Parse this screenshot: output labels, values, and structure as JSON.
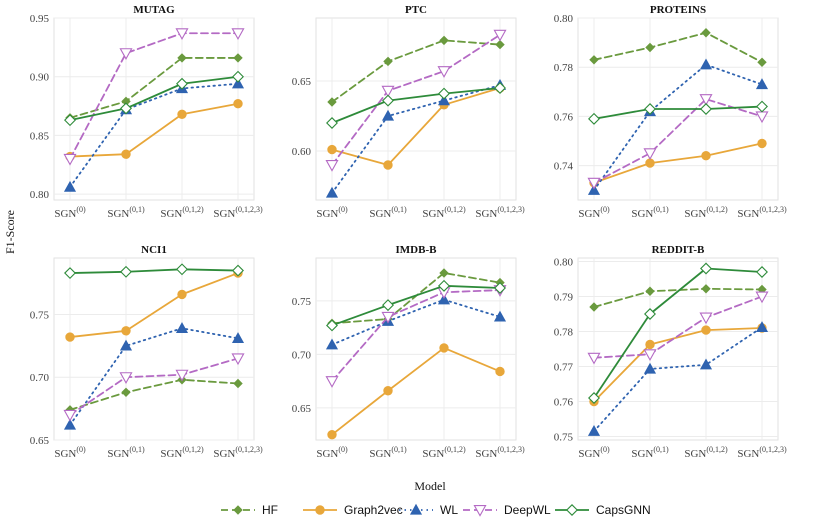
{
  "figure": {
    "ylabel": "F1-Score",
    "xlabel": "Model",
    "x_tick_base": "SGN",
    "x_tick_sups": [
      "(0)",
      "(0,1)",
      "(0,1,2)",
      "(0,1,2,3)"
    ]
  },
  "series_styles": [
    {
      "name": "HF",
      "color": "#6a9a3e",
      "dash": "7,4",
      "marker": "diamond-filled"
    },
    {
      "name": "Graph2vec",
      "color": "#e8a73a",
      "dash": "",
      "marker": "circle-filled"
    },
    {
      "name": "WL",
      "color": "#2f63b0",
      "dash": "1.5,4",
      "marker": "triangle-up-filled"
    },
    {
      "name": "DeepWL",
      "color": "#b46ac4",
      "dash": "7,4",
      "marker": "triangle-down-open"
    },
    {
      "name": "CapsGNN",
      "color": "#2e8b3a",
      "dash": "",
      "marker": "diamond-open"
    }
  ],
  "chart_data": [
    {
      "type": "line",
      "title": "MUTAG",
      "categories": [
        "SGN(0)",
        "SGN(0,1)",
        "SGN(0,1,2)",
        "SGN(0,1,2,3)"
      ],
      "ylim": [
        0.795,
        0.95
      ],
      "yticks": [
        0.8,
        0.85,
        0.9,
        0.95
      ],
      "series": [
        {
          "name": "HF",
          "values": [
            0.865,
            0.879,
            0.916,
            0.916
          ]
        },
        {
          "name": "Graph2vec",
          "values": [
            0.832,
            0.834,
            0.868,
            0.877
          ]
        },
        {
          "name": "WL",
          "values": [
            0.806,
            0.872,
            0.89,
            0.894
          ]
        },
        {
          "name": "DeepWL",
          "values": [
            0.83,
            0.92,
            0.937,
            0.937
          ]
        },
        {
          "name": "CapsGNN",
          "values": [
            0.863,
            0.873,
            0.894,
            0.9
          ]
        }
      ]
    },
    {
      "type": "line",
      "title": "PTC",
      "categories": [
        "SGN(0)",
        "SGN(0,1)",
        "SGN(0,1,2)",
        "SGN(0,1,2,3)"
      ],
      "ylim": [
        0.565,
        0.695
      ],
      "yticks": [
        0.6,
        0.65
      ],
      "series": [
        {
          "name": "HF",
          "values": [
            0.635,
            0.664,
            0.679,
            0.676
          ]
        },
        {
          "name": "Graph2vec",
          "values": [
            0.601,
            0.59,
            0.633,
            0.645
          ]
        },
        {
          "name": "WL",
          "values": [
            0.57,
            0.625,
            0.636,
            0.647
          ]
        },
        {
          "name": "DeepWL",
          "values": [
            0.59,
            0.643,
            0.657,
            0.683
          ]
        },
        {
          "name": "CapsGNN",
          "values": [
            0.62,
            0.636,
            0.641,
            0.645
          ]
        }
      ]
    },
    {
      "type": "line",
      "title": "PROTEINS",
      "categories": [
        "SGN(0)",
        "SGN(0,1)",
        "SGN(0,1,2)",
        "SGN(0,1,2,3)"
      ],
      "ylim": [
        0.726,
        0.8
      ],
      "yticks": [
        0.74,
        0.76,
        0.78,
        0.8
      ],
      "series": [
        {
          "name": "HF",
          "values": [
            0.783,
            0.788,
            0.794,
            0.782
          ]
        },
        {
          "name": "Graph2vec",
          "values": [
            0.733,
            0.741,
            0.744,
            0.749
          ]
        },
        {
          "name": "WL",
          "values": [
            0.73,
            0.762,
            0.781,
            0.773
          ]
        },
        {
          "name": "DeepWL",
          "values": [
            0.733,
            0.745,
            0.767,
            0.76
          ]
        },
        {
          "name": "CapsGNN",
          "values": [
            0.759,
            0.763,
            0.763,
            0.764
          ]
        }
      ]
    },
    {
      "type": "line",
      "title": "NCI1",
      "categories": [
        "SGN(0)",
        "SGN(0,1)",
        "SGN(0,1,2)",
        "SGN(0,1,2,3)"
      ],
      "ylim": [
        0.65,
        0.795
      ],
      "yticks": [
        0.65,
        0.7,
        0.75
      ],
      "series": [
        {
          "name": "HF",
          "values": [
            0.674,
            0.688,
            0.698,
            0.695
          ]
        },
        {
          "name": "Graph2vec",
          "values": [
            0.732,
            0.737,
            0.766,
            0.783
          ]
        },
        {
          "name": "WL",
          "values": [
            0.662,
            0.725,
            0.739,
            0.731
          ]
        },
        {
          "name": "DeepWL",
          "values": [
            0.67,
            0.7,
            0.702,
            0.715
          ]
        },
        {
          "name": "CapsGNN",
          "values": [
            0.783,
            0.784,
            0.786,
            0.785
          ]
        }
      ]
    },
    {
      "type": "line",
      "title": "IMDB-B",
      "categories": [
        "SGN(0)",
        "SGN(0,1)",
        "SGN(0,1,2)",
        "SGN(0,1,2,3)"
      ],
      "ylim": [
        0.62,
        0.79
      ],
      "yticks": [
        0.65,
        0.7,
        0.75
      ],
      "series": [
        {
          "name": "HF",
          "values": [
            0.729,
            0.733,
            0.776,
            0.767
          ]
        },
        {
          "name": "Graph2vec",
          "values": [
            0.625,
            0.666,
            0.706,
            0.684
          ]
        },
        {
          "name": "WL",
          "values": [
            0.709,
            0.731,
            0.751,
            0.735
          ]
        },
        {
          "name": "DeepWL",
          "values": [
            0.675,
            0.735,
            0.758,
            0.76
          ]
        },
        {
          "name": "CapsGNN",
          "values": [
            0.727,
            0.746,
            0.764,
            0.762
          ]
        }
      ]
    },
    {
      "type": "line",
      "title": "REDDIT-B",
      "categories": [
        "SGN(0)",
        "SGN(0,1)",
        "SGN(0,1,2)",
        "SGN(0,1,2,3)"
      ],
      "ylim": [
        0.749,
        0.801
      ],
      "yticks": [
        0.75,
        0.76,
        0.77,
        0.78,
        0.79,
        0.8
      ],
      "series": [
        {
          "name": "HF",
          "values": [
            0.787,
            0.7915,
            0.7922,
            0.792
          ]
        },
        {
          "name": "Graph2vec",
          "values": [
            0.76,
            0.7763,
            0.7804,
            0.781
          ]
        },
        {
          "name": "WL",
          "values": [
            0.7515,
            0.7693,
            0.7705,
            0.7812
          ]
        },
        {
          "name": "DeepWL",
          "values": [
            0.7725,
            0.7735,
            0.784,
            0.79
          ]
        },
        {
          "name": "CapsGNN",
          "values": [
            0.761,
            0.785,
            0.798,
            0.797
          ]
        }
      ]
    }
  ]
}
